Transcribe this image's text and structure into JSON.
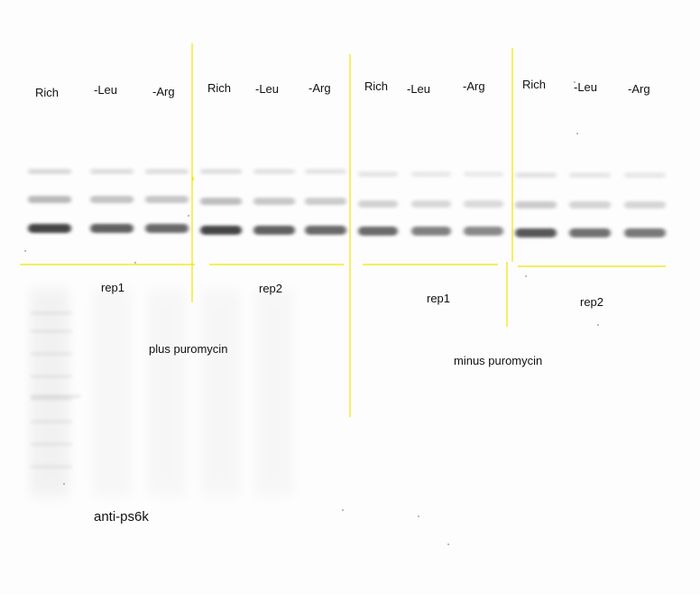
{
  "panels": [
    {
      "lanes": [
        "Rich",
        "-Leu",
        "-Arg"
      ],
      "rep": "rep1"
    },
    {
      "lanes": [
        "Rich",
        "-Leu",
        "-Arg"
      ],
      "rep": "rep2"
    },
    {
      "lanes": [
        "Rich",
        "-Leu",
        "-Arg"
      ],
      "rep": "rep1"
    },
    {
      "lanes": [
        "Rich",
        "-Leu",
        "-Arg"
      ],
      "rep": "rep2"
    }
  ],
  "conditions": [
    "plus puromycin",
    "minus puromycin"
  ],
  "antibody": "anti-ps6k",
  "colors": {
    "divider": "#f2e600",
    "band": "#3a3a3a",
    "background": "#fdfdfd"
  }
}
